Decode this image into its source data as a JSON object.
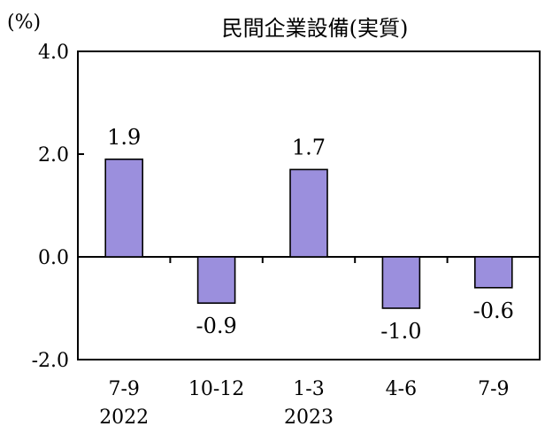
{
  "chart_data": {
    "type": "bar",
    "title": "民間企業設備(実質)",
    "unit_label": "(%)",
    "xlabel": "",
    "ylabel": "(%)",
    "ylim": [
      -2.0,
      4.0
    ],
    "yticks": [
      4.0,
      2.0,
      0.0,
      -2.0
    ],
    "ytick_labels": [
      "4.0",
      "2.0",
      "0.0",
      "-2.0"
    ],
    "grid": false,
    "legend": "none",
    "categories": [
      "7-9",
      "10-12",
      "1-3",
      "4-6",
      "7-9"
    ],
    "year_labels": [
      "2022",
      "",
      "2023",
      "",
      ""
    ],
    "values": [
      1.9,
      -0.9,
      1.7,
      -1.0,
      -0.6
    ],
    "value_labels": [
      "1.9",
      "-0.9",
      "1.7",
      "-1.0",
      "-0.6"
    ],
    "bar_color": "#9b8fdd",
    "positive_label_color": "#000000",
    "negative_label_color": "#ff0000"
  }
}
